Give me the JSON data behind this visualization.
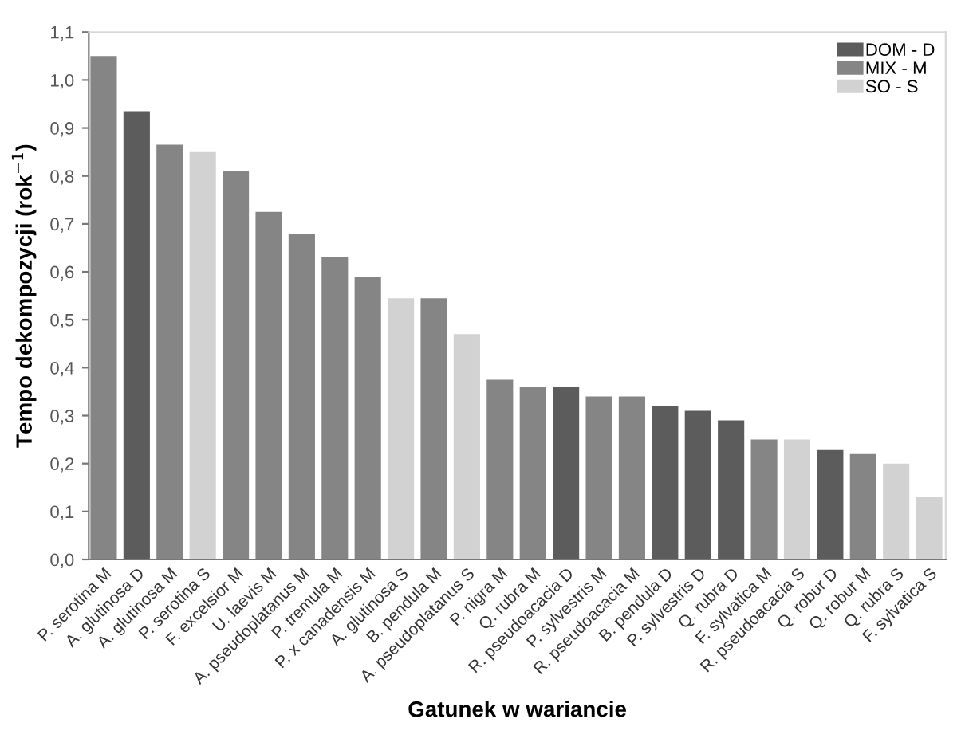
{
  "chart_data": {
    "type": "bar",
    "stacked": true,
    "xlabel": "Gatunek w wariancie",
    "ylabel": "Tempo dekompozycji (rok$^{−1}$)",
    "categories": [
      "P. serotina M",
      "A. glutinosa D",
      "A. glutinosa M",
      "P. serotina S",
      "F. excelsior M",
      "U. laevis M",
      "A. pseudoplatanus M",
      "P. tremula M",
      "P. x canadensis M",
      "A. glutinosa S",
      "B. pendula M",
      "A. pseudoplatanus S",
      "P. nigra M",
      "Q. rubra M",
      "R. pseudoacacia D",
      "P. sylvestris M",
      "R. pseudoacacia M",
      "B. pendula D",
      "P. sylvestris D",
      "Q. rubra D",
      "F. sylvatica M",
      "R. pseudoacacia S",
      "Q. robur D",
      "Q. robur M",
      "Q. rubra S",
      "F. sylvatica S"
    ],
    "series": [
      {
        "name": "DOM - D",
        "color": "#5c5c5c",
        "values": [
          null,
          0.935,
          null,
          null,
          null,
          null,
          null,
          null,
          null,
          null,
          null,
          null,
          null,
          null,
          0.36,
          null,
          null,
          0.32,
          0.31,
          0.29,
          null,
          null,
          0.23,
          null,
          null,
          null
        ]
      },
      {
        "name": "MIX - M",
        "color": "#858585",
        "values": [
          1.05,
          null,
          0.865,
          null,
          0.81,
          0.725,
          0.68,
          0.63,
          0.59,
          null,
          0.545,
          null,
          0.375,
          0.36,
          null,
          0.34,
          0.34,
          null,
          null,
          null,
          0.25,
          null,
          null,
          0.22,
          null,
          null
        ]
      },
      {
        "name": "SO - S",
        "color": "#d2d2d2",
        "values": [
          null,
          null,
          null,
          0.85,
          null,
          null,
          null,
          null,
          null,
          0.545,
          null,
          0.47,
          null,
          null,
          null,
          null,
          null,
          null,
          null,
          null,
          null,
          0.25,
          null,
          null,
          0.2,
          0.13
        ]
      }
    ],
    "ylim": [
      0,
      1.1
    ],
    "yticks": [
      {
        "value": 0,
        "label": "0,0"
      },
      {
        "value": 0.1,
        "label": "0,1"
      },
      {
        "value": 0.2,
        "label": "0,2"
      },
      {
        "value": 0.3,
        "label": "0,3"
      },
      {
        "value": 0.4,
        "label": "0,4"
      },
      {
        "value": 0.5,
        "label": "0,5"
      },
      {
        "value": 0.6,
        "label": "0,6"
      },
      {
        "value": 0.7,
        "label": "0,7"
      },
      {
        "value": 0.8,
        "label": "0,8"
      },
      {
        "value": 0.9,
        "label": "0,9"
      },
      {
        "value": 1.0,
        "label": "1,0"
      },
      {
        "value": 1.1,
        "label": "1,1"
      }
    ],
    "grid": false,
    "legend": "top right"
  }
}
